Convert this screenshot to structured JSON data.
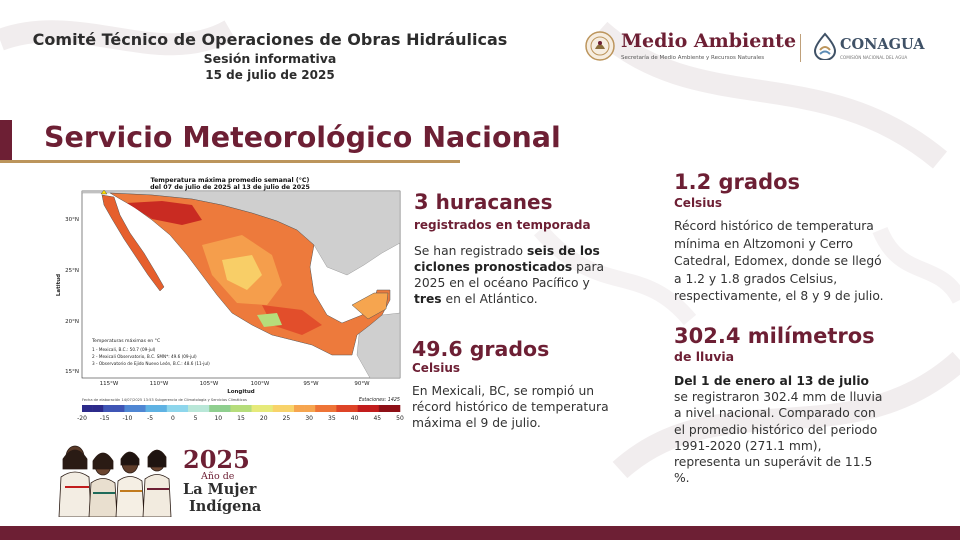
{
  "header": {
    "line1": "Comité Técnico de Operaciones de Obras Hidráulicas",
    "line2": "Sesión informativa",
    "line3": "15 de julio de 2025"
  },
  "logos": {
    "medio_ambiente": {
      "name": "Medio Ambiente",
      "subtitle": "Secretaría de Medio Ambiente y Recursos Naturales"
    },
    "conagua": {
      "name": "CONAGUA",
      "subtitle": "COMISIÓN NACIONAL DEL AGUA"
    }
  },
  "title": "Servicio Meteorológico Nacional",
  "map": {
    "title_line1": "Temperatura máxima promedio semanal (°C)",
    "title_line2": "del 07 de julio de 2025 al 13 de julio de 2025",
    "lat_ticks": [
      "30°N",
      "25°N",
      "20°N",
      "15°N"
    ],
    "lon_ticks": [
      "115°W",
      "110°W",
      "105°W",
      "100°W",
      "95°W",
      "90°W"
    ],
    "ylabel": "Latitud",
    "xlabel": "Longitud",
    "legend_title": "Temperaturas máximas en °C",
    "legend_items": [
      "1 - Mexicali, B.C.: 50.7 (09-jul)",
      "2 - Mexicali Observatorio, B.C. SMN*: 49.6 (09-jul)",
      "3 - Observatorio de Ejido Nuevo León, B.C.: 48.6 (11-jul)"
    ],
    "footer_note": "Fecha de elaboración 14/07/2025 13:53 Subgerencia de Climatología y Servicios Climáticos",
    "stations": "Estaciones: 1425",
    "scale_values": [
      "-20",
      "-15",
      "-10",
      "-5",
      "0",
      "5",
      "10",
      "15",
      "20",
      "25",
      "30",
      "35",
      "40",
      "45",
      "50"
    ],
    "scale_colors": [
      "#2c2a8a",
      "#3f55b5",
      "#4f86d3",
      "#5fb2e3",
      "#8ed6ec",
      "#b9e7d8",
      "#8fcf8f",
      "#b6dd7b",
      "#e6ea7a",
      "#f8d36a",
      "#f6a54f",
      "#ee7437",
      "#de4427",
      "#c21d1d",
      "#8e0f16"
    ],
    "land_color": "#ed7a3c",
    "sea_color": "#ffffff",
    "foreign_color": "#cfcfcf"
  },
  "hurricanes": {
    "heading_num": "3",
    "heading_word": "huracanes",
    "sub": "registrados  en temporada",
    "p_a": "Se han registrado ",
    "p_b": "seis de los ciclones pronosticados",
    "p_c": " para 2025 en el océano Pacífico y ",
    "p_d": "tres",
    "p_e": " en el Atlántico."
  },
  "max_temp": {
    "heading": "49.6 grados",
    "sub": "Celsius",
    "text": "En Mexicali, BC, se rompió un récord histórico de temperatura máxima el 9 de julio."
  },
  "min_temp": {
    "heading": "1.2 grados",
    "sub": "Celsius",
    "text": "Récord histórico de temperatura mínima en Altzomoni y Cerro Catedral, Edomex, donde se llegó a 1.2 y 1.8 grados Celsius, respectivamente, el 8 y 9 de julio."
  },
  "rain": {
    "heading": "302.4 milímetros",
    "sub": "de lluvia",
    "p_bold": "Del 1 de enero al 13 de julio",
    "p_rest": " se registraron 302.4 mm de lluvia a nivel nacional. Comparado con el promedio histórico del periodo 1991-2020 (271.1 mm), representa un superávit de 11.5 %."
  },
  "year_logo": {
    "year": "2025",
    "ano": "Año de",
    "line1": "La Mujer",
    "line2": "Indígena"
  }
}
